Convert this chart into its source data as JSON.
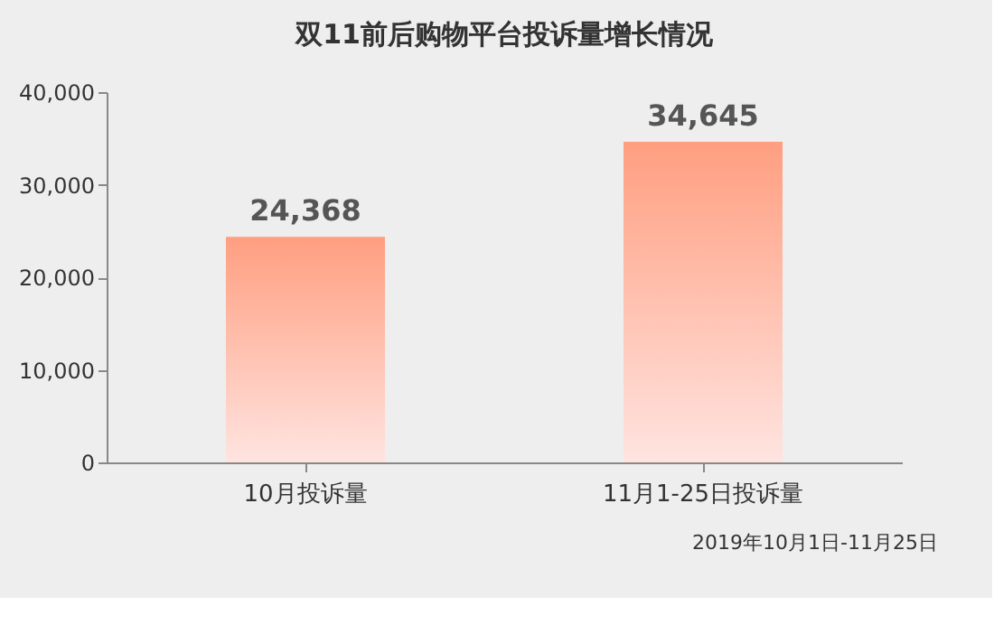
{
  "chart_data": {
    "type": "bar",
    "title": "双11前后购物平台投诉量增长情况",
    "categories": [
      "10月投诉量",
      "11月1-25日投诉量"
    ],
    "values": [
      24368,
      34645
    ],
    "color": "#ff9e80",
    "ylim": [
      0,
      40000
    ],
    "yticks": [
      {
        "value": 0,
        "label": "0"
      },
      {
        "value": 10000,
        "label": "10,000"
      },
      {
        "value": 20000,
        "label": "20,000"
      },
      {
        "value": 30000,
        "label": "30,000"
      },
      {
        "value": 40000,
        "label": "40,000"
      }
    ],
    "grid": false,
    "value_labels": [
      "24,368",
      "34,645"
    ],
    "annotations": [
      "2019年10月1日-11月25日"
    ]
  }
}
